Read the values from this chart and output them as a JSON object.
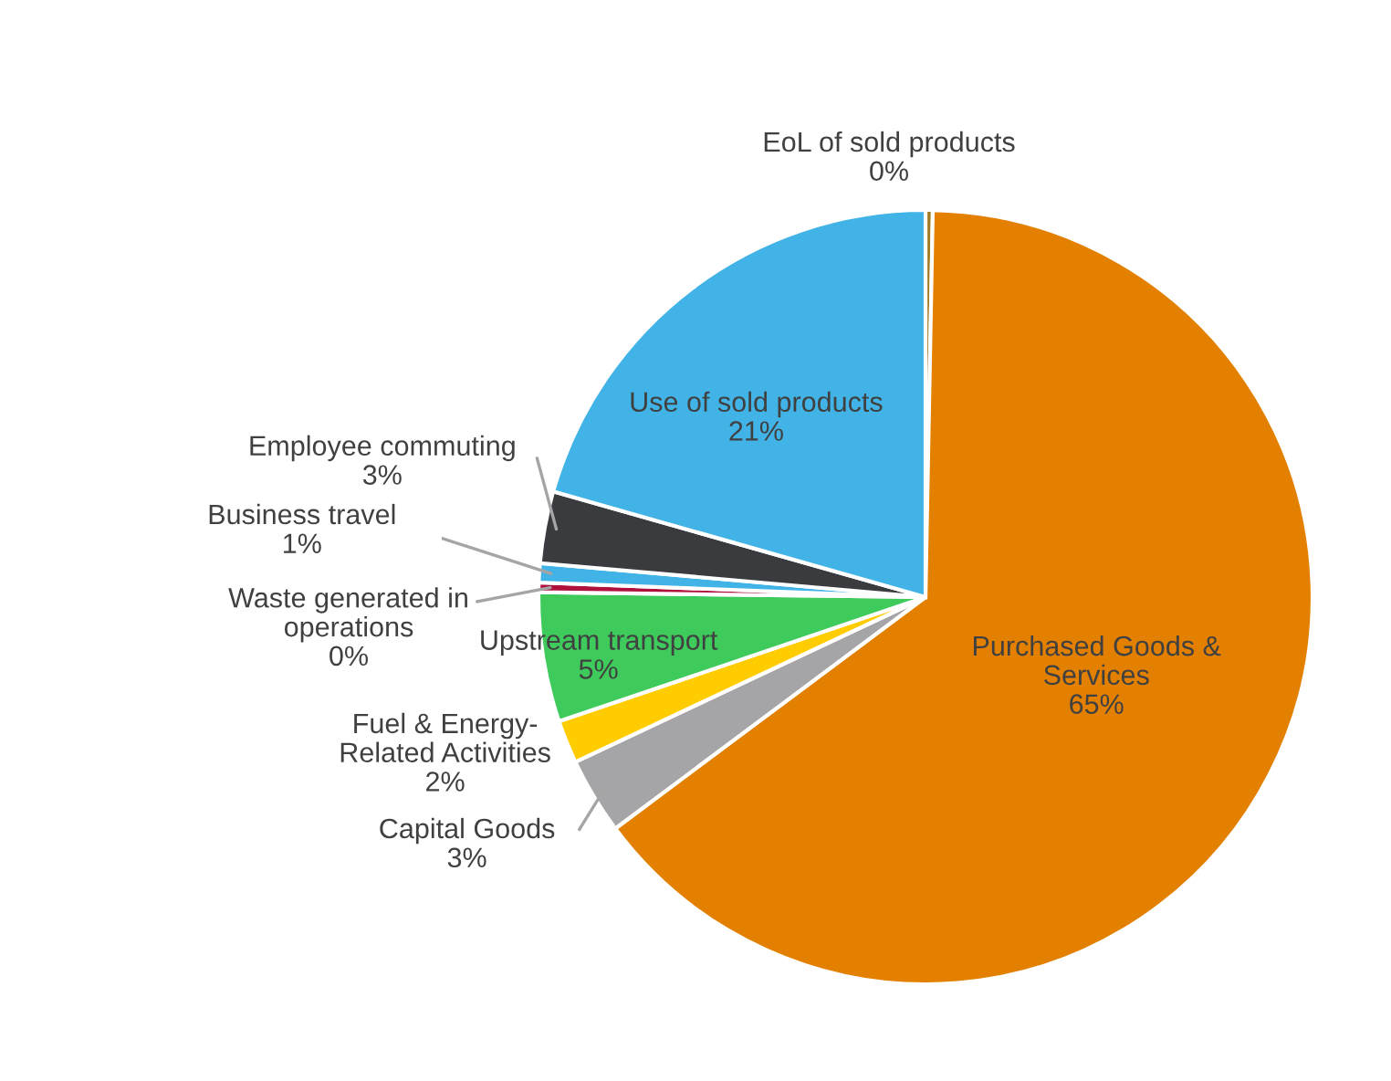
{
  "chart_data": {
    "type": "pie",
    "categories": [
      "EoL of sold products",
      "Purchased Goods &\nServices",
      "Capital Goods",
      "Fuel & Energy-\nRelated Activities",
      "Upstream transport",
      "Waste generated in\noperations",
      "Business travel",
      "Employee commuting",
      "Use of sold products"
    ],
    "values": [
      0.3,
      64.5,
      3.2,
      1.8,
      5.4,
      0.4,
      0.8,
      3.0,
      20.6
    ],
    "value_labels": [
      "0%",
      "65%",
      "3%",
      "2%",
      "5%",
      "0%",
      "1%",
      "3%",
      "21%"
    ],
    "colors": [
      "#a07a20",
      "#e38000",
      "#a5a5a7",
      "#ffcc00",
      "#3ecb5c",
      "#b0103c",
      "#41b3e6",
      "#3a3b3f",
      "#41b3e6"
    ]
  }
}
